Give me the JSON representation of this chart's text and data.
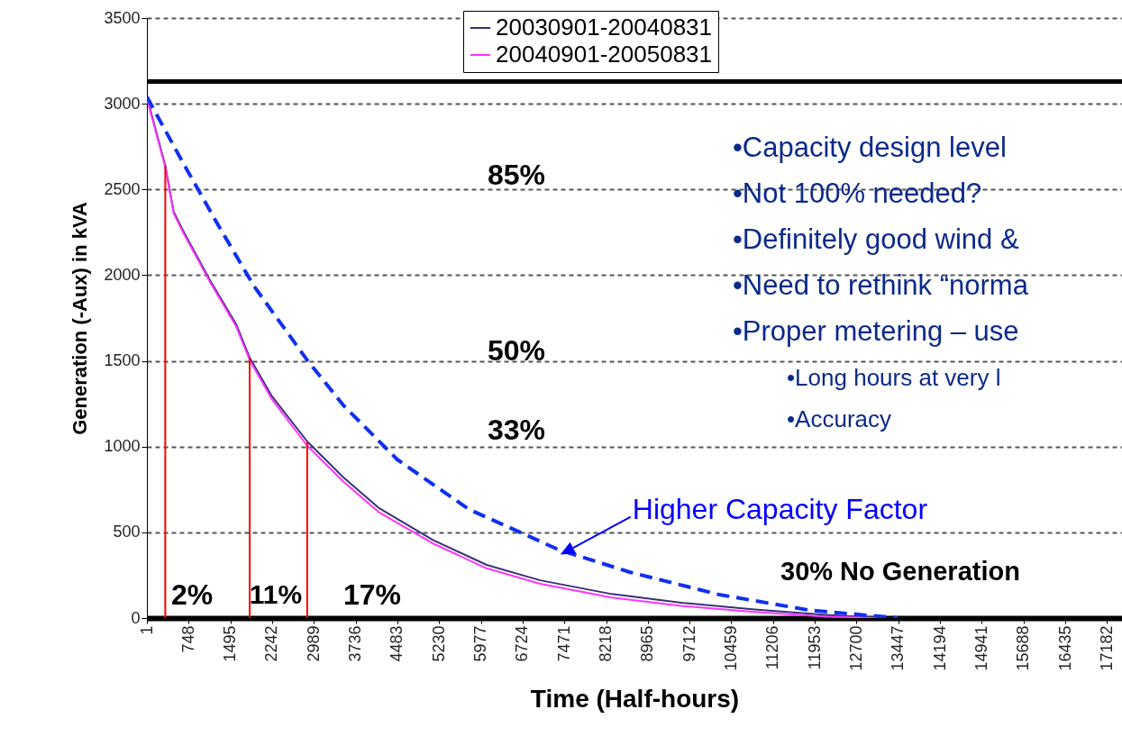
{
  "chart_data": {
    "type": "line",
    "xlabel": "Time (Half-hours)",
    "ylabel": "Generation (-Aux) in kVA",
    "xlim": [
      1,
      17450
    ],
    "ylim": [
      0,
      3500
    ],
    "xticks": [
      1,
      748,
      1495,
      2242,
      2989,
      3736,
      4483,
      5230,
      5977,
      6724,
      7471,
      8218,
      8965,
      9712,
      10459,
      11206,
      11953,
      12700,
      13447,
      14194,
      14941,
      15688,
      16435,
      17182
    ],
    "yticks": [
      0,
      500,
      1000,
      1500,
      2000,
      2500,
      3000,
      3500
    ],
    "grid": "y",
    "legend": "top",
    "line_style": "solid",
    "marker": "none",
    "series": [
      {
        "name": "20030901-20040831",
        "color": "#3a2f7a",
        "x": [
          1,
          330,
          480,
          640,
          1120,
          1600,
          1840,
          2240,
          2870,
          3520,
          4160,
          5120,
          6080,
          7040,
          8320,
          9600,
          10880,
          12160,
          13120
        ],
        "values": [
          3040,
          2640,
          2370,
          2265,
          1976,
          1713,
          1519,
          1293,
          1030,
          820,
          640,
          455,
          310,
          220,
          140,
          88,
          50,
          18,
          0
        ]
      },
      {
        "name": "20040901-20050831",
        "color": "#ff33ff",
        "x": [
          1,
          330,
          480,
          640,
          1120,
          1600,
          1840,
          2240,
          2870,
          3520,
          4160,
          5120,
          6080,
          7040,
          8320,
          9600,
          10880,
          12160,
          13120
        ],
        "values": [
          3030,
          2630,
          2360,
          2255,
          1966,
          1700,
          1505,
          1275,
          1005,
          795,
          615,
          435,
          290,
          200,
          120,
          70,
          35,
          8,
          0
        ]
      },
      {
        "color": "#1030f0",
        "line_style": "dashed",
        "x": [
          1,
          640,
          1280,
          1920,
          2880,
          3520,
          4480,
          5760,
          7360,
          8640,
          10240,
          11840,
          13440
        ],
        "values": [
          3040,
          2660,
          2290,
          1935,
          1500,
          1240,
          925,
          635,
          400,
          268,
          137,
          47,
          0
        ]
      },
      {
        "color": "#ff0000",
        "x": [
          330,
          330
        ],
        "values": [
          0,
          2640
        ]
      },
      {
        "color": "#ff0000",
        "x": [
          1840,
          1840
        ],
        "values": [
          0,
          1519
        ]
      },
      {
        "color": "#ff0000",
        "x": [
          2870,
          2870
        ],
        "values": [
          0,
          1030
        ]
      }
    ],
    "ref_lines": [
      {
        "axis": "y",
        "value": 3130,
        "color": "#000000"
      }
    ],
    "annotations": [
      "85%",
      "50%",
      "33%",
      "2%",
      "11%",
      "17%",
      "30% No Generation",
      {
        "text": "Higher Capacity Factor",
        "x": 7400,
        "y": 370
      },
      "•Capacity design level",
      "•Not 100% needed?",
      "•Definitely good wind &",
      "•Need to rethink “norma",
      "•Proper metering – use",
      "•Long hours at very l",
      "•Accuracy"
    ]
  }
}
